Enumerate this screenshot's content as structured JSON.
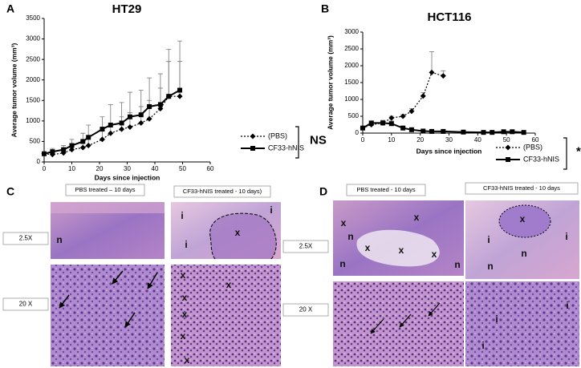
{
  "chart_data": [
    {
      "type": "line",
      "panel_label": "A",
      "title": "HT29",
      "x_label": "Days since injection",
      "y_label": "Average tumor volume (mm³)",
      "xlim": [
        0,
        60
      ],
      "xticks": [
        0,
        10,
        20,
        30,
        40,
        50,
        60
      ],
      "ylim": [
        0,
        3500
      ],
      "yticks": [
        0,
        500,
        1000,
        1500,
        2000,
        2500,
        3000,
        3500
      ],
      "series": [
        {
          "name": "(PBS)",
          "color": "#000000",
          "style": "dotted",
          "marker": "diamond",
          "x": [
            0,
            3,
            7,
            10,
            14,
            16,
            21,
            24,
            28,
            31,
            35,
            38,
            42,
            45,
            49
          ],
          "values": [
            200,
            180,
            220,
            300,
            350,
            400,
            550,
            700,
            800,
            850,
            950,
            1050,
            1300,
            1600,
            1600
          ],
          "errors": [
            40,
            60,
            80,
            100,
            120,
            150,
            200,
            250,
            300,
            350,
            400,
            450,
            500,
            850,
            850
          ]
        },
        {
          "name": "CF33-hNIS",
          "color": "#000000",
          "style": "solid",
          "marker": "square",
          "x": [
            0,
            3,
            7,
            10,
            14,
            16,
            21,
            24,
            28,
            31,
            35,
            38,
            42,
            45,
            49
          ],
          "values": [
            200,
            250,
            300,
            400,
            500,
            600,
            800,
            900,
            950,
            1100,
            1150,
            1350,
            1400,
            1600,
            1750
          ],
          "errors": [
            50,
            80,
            100,
            150,
            200,
            300,
            300,
            500,
            500,
            600,
            600,
            700,
            750,
            1150,
            1200
          ]
        }
      ],
      "annotation": "NS"
    },
    {
      "type": "line",
      "panel_label": "B",
      "title": "HCT116",
      "x_label": "Days since injection",
      "y_label": "Average tumor volume (mm³)",
      "xlim": [
        0,
        60
      ],
      "xticks": [
        0,
        10,
        20,
        30,
        40,
        50,
        60
      ],
      "ylim": [
        0,
        3000
      ],
      "yticks": [
        0,
        500,
        1000,
        1500,
        2000,
        2500,
        3000
      ],
      "series": [
        {
          "name": "(PBS)",
          "color": "#000000",
          "style": "dotted",
          "marker": "diamond",
          "x": [
            0,
            3,
            7,
            10,
            14,
            17,
            21,
            24,
            28
          ],
          "values": [
            150,
            250,
            300,
            450,
            500,
            650,
            1100,
            1800,
            1700
          ],
          "errors": [
            30,
            50,
            50,
            50,
            50,
            80,
            100,
            620,
            150
          ]
        },
        {
          "name": "CF33-hNIS",
          "color": "#000000",
          "style": "solid",
          "marker": "square",
          "x": [
            0,
            3,
            7,
            10,
            14,
            17,
            21,
            24,
            28,
            35,
            42,
            45,
            49,
            52,
            56
          ],
          "values": [
            150,
            300,
            300,
            280,
            150,
            100,
            60,
            50,
            50,
            30,
            20,
            20,
            40,
            40,
            20
          ],
          "errors": [
            30,
            60,
            80,
            80,
            60,
            40,
            30,
            20,
            20,
            10,
            10,
            10,
            20,
            20,
            10
          ]
        }
      ],
      "annotation": "*"
    }
  ],
  "panels": [
    {
      "letter": "C",
      "headers": [
        "PBS treated – 10 days",
        "CF33-hNIS treated - 10 days)"
      ],
      "magnifications": [
        "2.5X",
        "20 X"
      ],
      "image_labels": {
        "top_left": [
          "n"
        ],
        "top_right": [
          "i",
          "i",
          "x",
          "i"
        ],
        "bottom_right": [
          "x",
          "x",
          "x",
          "x",
          "x",
          "x"
        ]
      }
    },
    {
      "letter": "D",
      "headers": [
        "PBS treated - 10 days",
        "CF33-hNIS treated - 10 days"
      ],
      "magnifications": [
        "2.5X",
        "20 X"
      ],
      "image_labels": {
        "top_left": [
          "x",
          "x",
          "n",
          "x",
          "x",
          "x",
          "n",
          "n"
        ],
        "top_right": [
          "x",
          "i",
          "i",
          "n",
          "n"
        ],
        "bottom_right": [
          "i",
          "i",
          "i"
        ]
      }
    }
  ]
}
